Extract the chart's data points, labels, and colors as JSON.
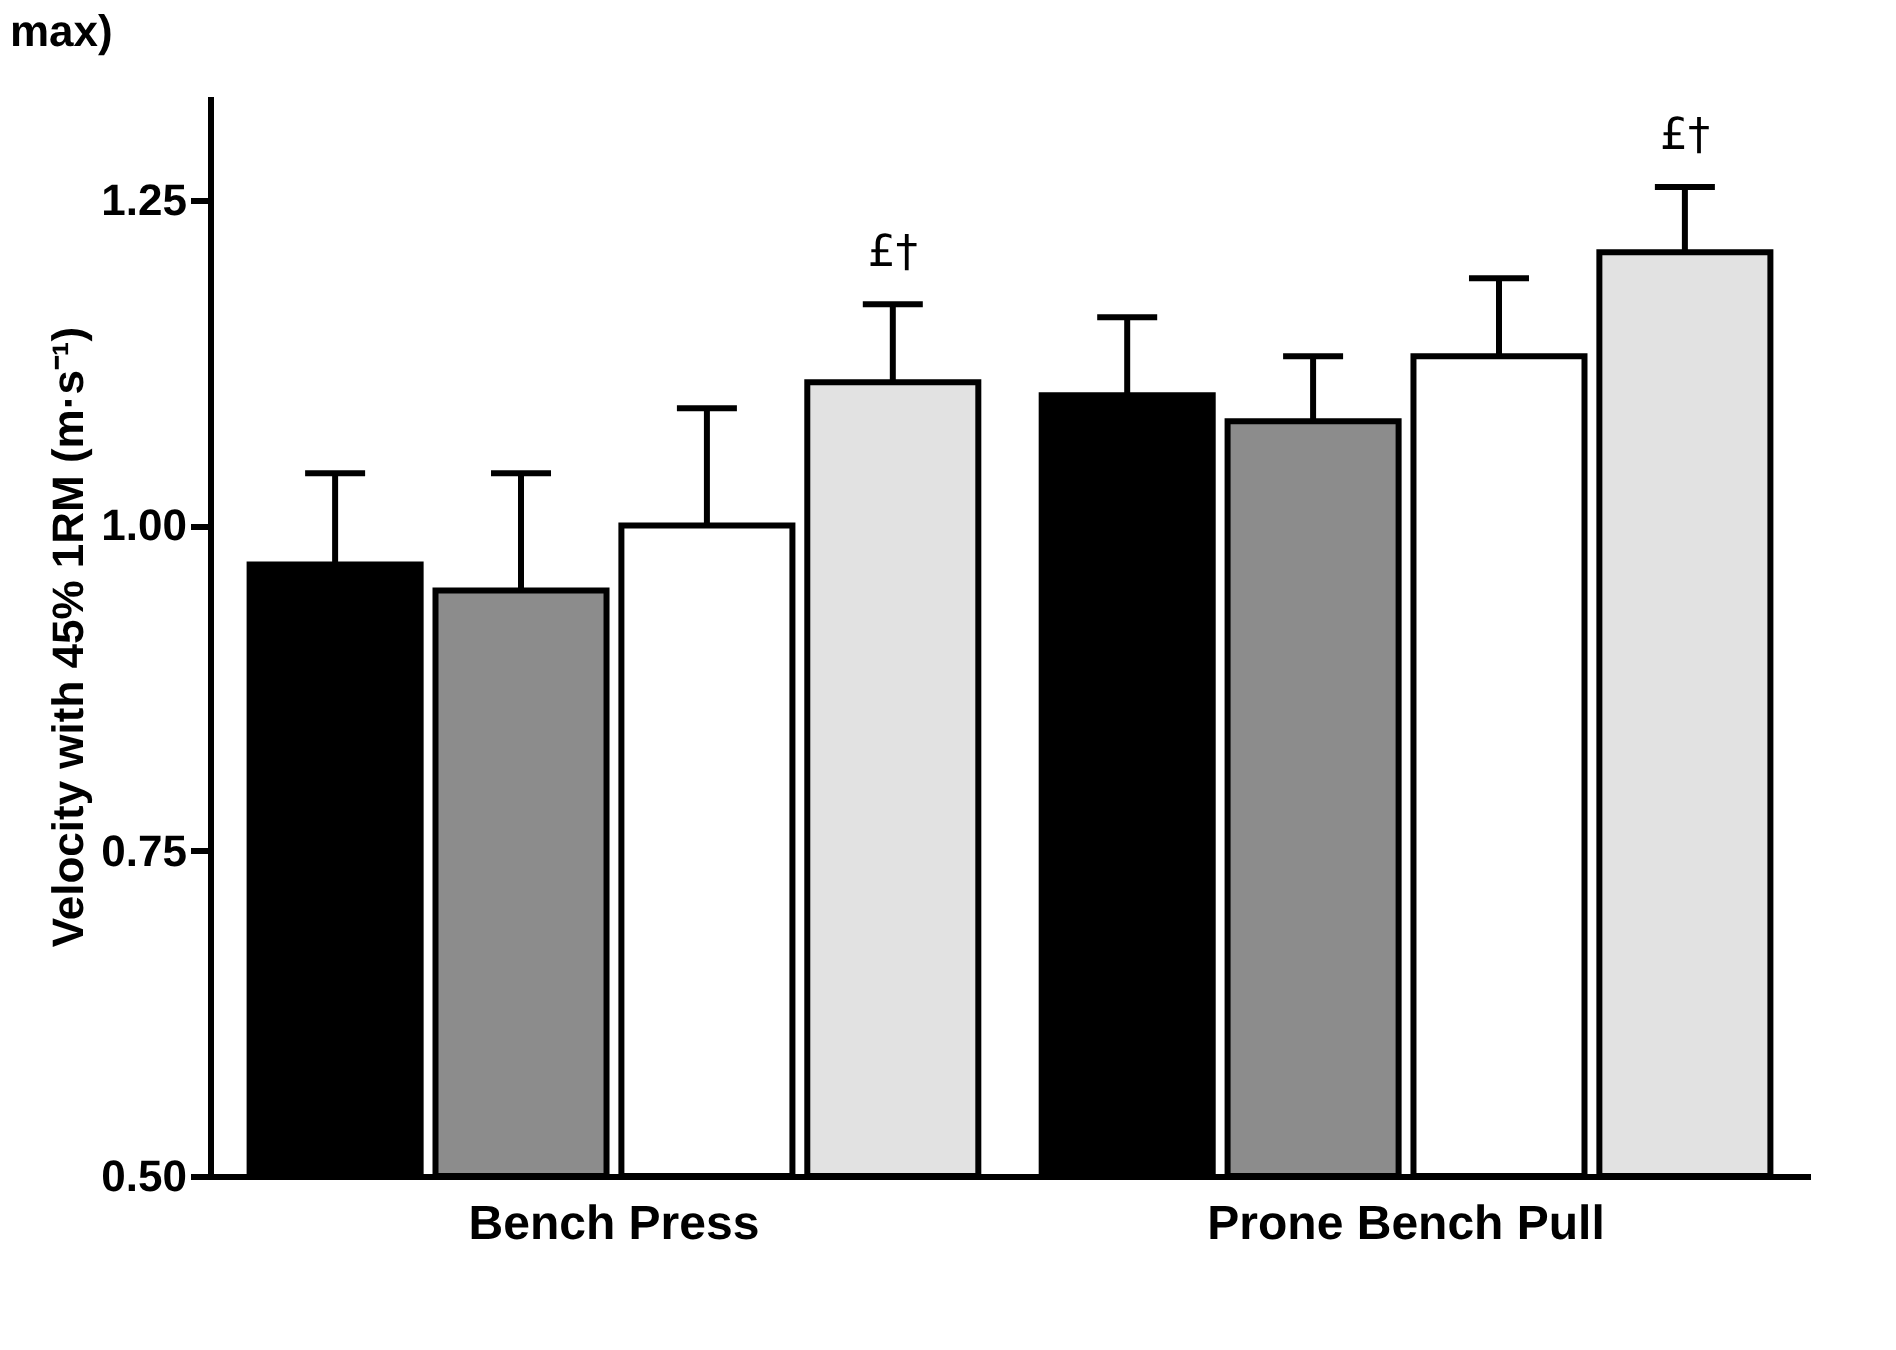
{
  "chart_data": {
    "type": "bar",
    "ylabel": "Velocity with 45% 1RM (m·s⁻¹)",
    "categories": [
      "Bench Press",
      "Prone Bench Pull"
    ],
    "series": [
      {
        "color": "#000000",
        "values": [
          0.97,
          1.1
        ],
        "errors": [
          [
            0.97,
            1.04
          ],
          [
            1.1,
            1.16
          ]
        ]
      },
      {
        "color": "#8c8c8c",
        "values": [
          0.95,
          1.08
        ],
        "errors": [
          [
            0.95,
            1.04
          ],
          [
            1.08,
            1.13
          ]
        ]
      },
      {
        "color": "#ffffff",
        "values": [
          1.0,
          1.13
        ],
        "errors": [
          [
            1.0,
            1.09
          ],
          [
            1.13,
            1.19
          ]
        ]
      },
      {
        "color": "#e2e2e2",
        "values": [
          1.11,
          1.21
        ],
        "errors": [
          [
            1.11,
            1.17
          ],
          [
            1.21,
            1.26
          ]
        ]
      }
    ],
    "ylim": [
      0.5,
      1.33
    ],
    "yticks": [
      {
        "value": 0.5,
        "label": "0.50"
      },
      {
        "value": 0.75,
        "label": "0.75"
      },
      {
        "value": 1.0,
        "label": "1.00"
      },
      {
        "value": 1.25,
        "label": "1.25"
      }
    ],
    "grid": false,
    "legend": false,
    "annotations": [
      "max)",
      "£†",
      "£†"
    ]
  }
}
